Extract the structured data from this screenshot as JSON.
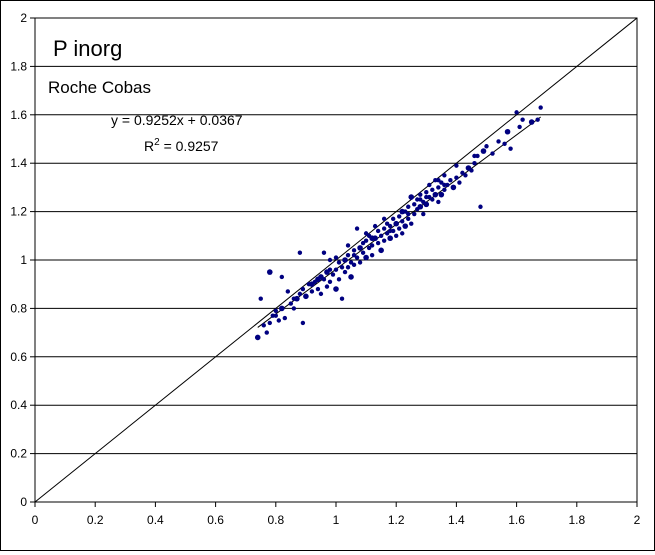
{
  "chart_data": {
    "type": "scatter",
    "title": "P inorg",
    "subtitle": "Roche Cobas",
    "xlabel": "",
    "ylabel": "",
    "xlim": [
      0,
      2
    ],
    "ylim": [
      0,
      2
    ],
    "x_ticks": [
      "0",
      "0.2",
      "0.4",
      "0.6",
      "0.8",
      "1",
      "1.2",
      "1.4",
      "1.6",
      "1.8",
      "2"
    ],
    "y_ticks": [
      "0",
      "0.2",
      "0.4",
      "0.6",
      "0.8",
      "1",
      "1.2",
      "1.4",
      "1.6",
      "1.8",
      "2"
    ],
    "grid": "horizontal",
    "legend": "none",
    "marker_color": "#000080",
    "regression": {
      "equation": "y = 0.9252x + 0.0367",
      "r2_prefix": "R",
      "r2_sup": "2",
      "r2_value": " = 0.9257",
      "slope": 0.9252,
      "intercept": 0.0367
    },
    "identity_line": true,
    "series": [
      {
        "points": [
          [
            0.74,
            0.68
          ],
          [
            0.75,
            0.84
          ],
          [
            0.76,
            0.73
          ],
          [
            0.77,
            0.7
          ],
          [
            0.78,
            0.74
          ],
          [
            0.78,
            0.95
          ],
          [
            0.79,
            0.77
          ],
          [
            0.8,
            0.79
          ],
          [
            0.81,
            0.75
          ],
          [
            0.82,
            0.93
          ],
          [
            0.82,
            0.8
          ],
          [
            0.83,
            0.76
          ],
          [
            0.84,
            0.87
          ],
          [
            0.85,
            0.82
          ],
          [
            0.86,
            0.8
          ],
          [
            0.87,
            0.84
          ],
          [
            0.88,
            1.03
          ],
          [
            0.88,
            0.86
          ],
          [
            0.89,
            0.74
          ],
          [
            0.89,
            0.88
          ],
          [
            0.9,
            0.85
          ],
          [
            0.91,
            0.9
          ],
          [
            0.92,
            0.87
          ],
          [
            0.93,
            0.91
          ],
          [
            0.94,
            0.88
          ],
          [
            0.95,
            0.93
          ],
          [
            0.95,
            0.86
          ],
          [
            0.96,
            1.03
          ],
          [
            0.96,
            0.92
          ],
          [
            0.97,
            0.89
          ],
          [
            0.97,
            0.95
          ],
          [
            0.98,
            1.0
          ],
          [
            0.98,
            0.91
          ],
          [
            0.99,
            0.94
          ],
          [
            1.0,
            0.96
          ],
          [
            1.0,
            0.88
          ],
          [
            1.01,
            0.99
          ],
          [
            1.01,
            0.92
          ],
          [
            1.02,
            0.97
          ],
          [
            1.02,
            0.84
          ],
          [
            1.03,
            1.0
          ],
          [
            1.03,
            0.95
          ],
          [
            1.04,
            1.02
          ],
          [
            1.04,
            0.97
          ],
          [
            1.05,
            0.99
          ],
          [
            1.05,
            0.93
          ],
          [
            1.06,
            1.04
          ],
          [
            1.06,
            0.98
          ],
          [
            1.07,
            1.01
          ],
          [
            1.07,
            1.13
          ],
          [
            1.08,
            1.05
          ],
          [
            1.08,
            0.99
          ],
          [
            1.09,
            1.03
          ],
          [
            1.09,
            1.07
          ],
          [
            1.1,
            1.08
          ],
          [
            1.1,
            1.01
          ],
          [
            1.11,
            1.05
          ],
          [
            1.11,
            1.1
          ],
          [
            1.12,
            1.06
          ],
          [
            1.12,
            1.02
          ],
          [
            1.13,
            1.09
          ],
          [
            1.13,
            1.14
          ],
          [
            1.14,
            1.07
          ],
          [
            1.14,
            1.12
          ],
          [
            1.15,
            1.1
          ],
          [
            1.15,
            1.04
          ],
          [
            1.16,
            1.08
          ],
          [
            1.16,
            1.13
          ],
          [
            1.17,
            1.11
          ],
          [
            1.17,
            1.15
          ],
          [
            1.18,
            1.09
          ],
          [
            1.18,
            1.14
          ],
          [
            1.19,
            1.17
          ],
          [
            1.19,
            1.12
          ],
          [
            1.2,
            1.1
          ],
          [
            1.2,
            1.15
          ],
          [
            1.21,
            1.13
          ],
          [
            1.21,
            1.18
          ],
          [
            1.22,
            1.11
          ],
          [
            1.22,
            1.16
          ],
          [
            1.23,
            1.14
          ],
          [
            1.23,
            1.2
          ],
          [
            1.24,
            1.22
          ],
          [
            1.24,
            1.17
          ],
          [
            1.25,
            1.15
          ],
          [
            1.25,
            1.26
          ],
          [
            1.26,
            1.19
          ],
          [
            1.26,
            1.23
          ],
          [
            1.27,
            1.21
          ],
          [
            1.27,
            1.25
          ],
          [
            1.28,
            1.22
          ],
          [
            1.28,
            1.27
          ],
          [
            1.29,
            1.24
          ],
          [
            1.29,
            1.19
          ],
          [
            1.3,
            1.28
          ],
          [
            1.3,
            1.23
          ],
          [
            1.31,
            1.26
          ],
          [
            1.31,
            1.31
          ],
          [
            1.32,
            1.25
          ],
          [
            1.32,
            1.29
          ],
          [
            1.33,
            1.27
          ],
          [
            1.33,
            1.33
          ],
          [
            1.34,
            1.3
          ],
          [
            1.34,
            1.24
          ],
          [
            1.35,
            1.32
          ],
          [
            1.35,
            1.27
          ],
          [
            1.36,
            1.29
          ],
          [
            1.36,
            1.35
          ],
          [
            1.37,
            1.31
          ],
          [
            1.38,
            1.33
          ],
          [
            1.39,
            1.3
          ],
          [
            1.4,
            1.34
          ],
          [
            1.41,
            1.32
          ],
          [
            1.42,
            1.36
          ],
          [
            1.43,
            1.35
          ],
          [
            1.44,
            1.38
          ],
          [
            1.45,
            1.37
          ],
          [
            1.46,
            1.4
          ],
          [
            1.47,
            1.43
          ],
          [
            1.48,
            1.22
          ],
          [
            1.49,
            1.45
          ],
          [
            1.5,
            1.47
          ],
          [
            1.52,
            1.44
          ],
          [
            1.54,
            1.49
          ],
          [
            1.56,
            1.48
          ],
          [
            1.57,
            1.53
          ],
          [
            1.58,
            1.46
          ],
          [
            1.6,
            1.61
          ],
          [
            1.61,
            1.55
          ],
          [
            1.62,
            1.58
          ],
          [
            1.65,
            1.57
          ],
          [
            1.67,
            1.58
          ],
          [
            1.68,
            1.63
          ],
          [
            0.8,
            0.77
          ],
          [
            0.86,
            0.84
          ],
          [
            0.92,
            0.9
          ],
          [
            0.98,
            0.96
          ],
          [
            1.04,
            1.06
          ],
          [
            1.1,
            1.11
          ],
          [
            1.16,
            1.17
          ],
          [
            1.22,
            1.2
          ],
          [
            1.28,
            1.25
          ],
          [
            1.34,
            1.33
          ],
          [
            1.4,
            1.39
          ],
          [
            1.46,
            1.43
          ],
          [
            1.12,
            1.09
          ],
          [
            1.18,
            1.12
          ],
          [
            1.24,
            1.19
          ],
          [
            1.06,
            1.02
          ],
          [
            1.0,
            1.01
          ],
          [
            0.94,
            0.92
          ],
          [
            1.3,
            1.26
          ],
          [
            1.36,
            1.31
          ]
        ]
      }
    ]
  }
}
